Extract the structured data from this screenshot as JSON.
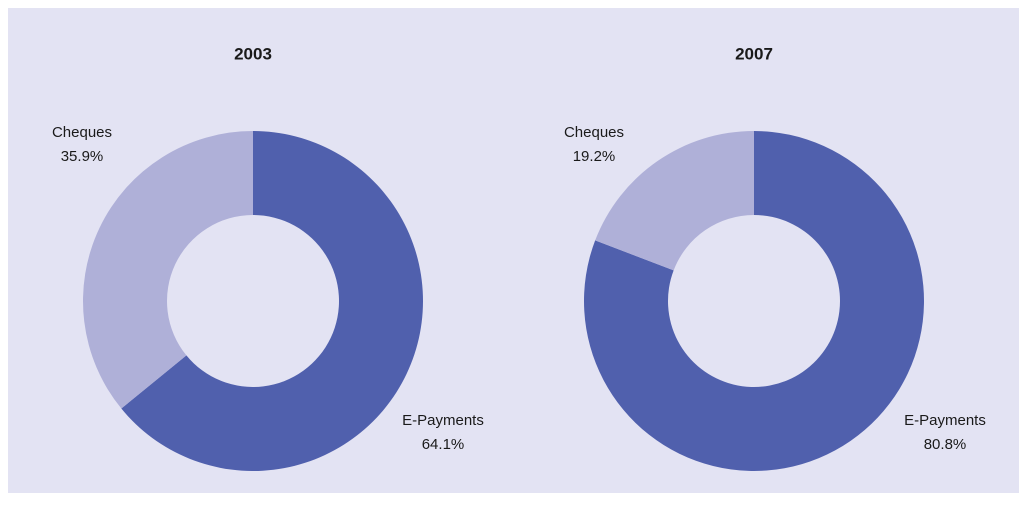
{
  "chart_data": [
    {
      "type": "pie",
      "donut": true,
      "title": "2003",
      "categories": [
        "E-Payments",
        "Cheques"
      ],
      "values": [
        64.1,
        35.9
      ],
      "value_labels": [
        "64.1%",
        "35.9%"
      ],
      "colors": [
        "#5060ad",
        "#afb0d8"
      ]
    },
    {
      "type": "pie",
      "donut": true,
      "title": "2007",
      "categories": [
        "E-Payments",
        "Cheques"
      ],
      "values": [
        80.8,
        19.2
      ],
      "value_labels": [
        "80.8%",
        "19.2%"
      ],
      "colors": [
        "#5060ad",
        "#afb0d8"
      ]
    }
  ]
}
